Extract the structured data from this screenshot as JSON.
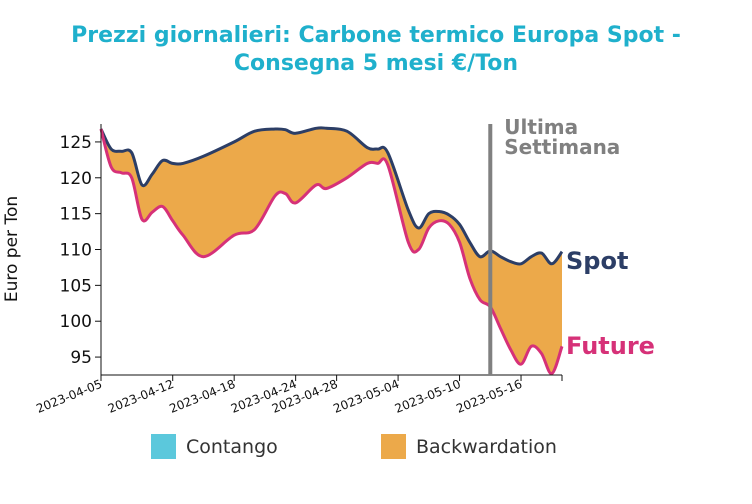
{
  "chart_data": {
    "type": "area",
    "title_line1": "Prezzi giornalieri: Carbone termico Europa Spot -",
    "title_line2": "Consegna 5 mesi €/Ton",
    "ylabel": "Euro per Ton",
    "ylim": [
      92.5,
      127.5
    ],
    "yticks": [
      95,
      100,
      105,
      110,
      115,
      120,
      125
    ],
    "x_start": "2023-04-05",
    "x_end": "2023-05-20",
    "xticks": [
      "2023-04-05",
      "2023-04-12",
      "2023-04-18",
      "2023-04-24",
      "2023-04-28",
      "2023-05-04",
      "2023-05-10",
      "2023-05-16"
    ],
    "marker": {
      "date": "2023-05-13",
      "label_line1": "Ultima",
      "label_line2": "Settimana",
      "color": "#808080"
    },
    "series": [
      {
        "name": "Spot",
        "color": "#2c3e66",
        "points": [
          [
            "2023-04-05",
            126.8
          ],
          [
            "2023-04-06",
            124.0
          ],
          [
            "2023-04-07",
            123.7
          ],
          [
            "2023-04-08",
            123.5
          ],
          [
            "2023-04-09",
            119.0
          ],
          [
            "2023-04-10",
            120.5
          ],
          [
            "2023-04-11",
            122.4
          ],
          [
            "2023-04-12",
            122.0
          ],
          [
            "2023-04-13",
            122.0
          ],
          [
            "2023-04-15",
            123.0
          ],
          [
            "2023-04-18",
            125.0
          ],
          [
            "2023-04-20",
            126.5
          ],
          [
            "2023-04-22",
            126.8
          ],
          [
            "2023-04-23",
            126.7
          ],
          [
            "2023-04-24",
            126.2
          ],
          [
            "2023-04-26",
            126.9
          ],
          [
            "2023-04-27",
            126.9
          ],
          [
            "2023-04-29",
            126.5
          ],
          [
            "2023-05-01",
            124.2
          ],
          [
            "2023-05-02",
            124.0
          ],
          [
            "2023-05-03",
            123.5
          ],
          [
            "2023-05-05",
            115.5
          ],
          [
            "2023-05-06",
            113.0
          ],
          [
            "2023-05-07",
            115.0
          ],
          [
            "2023-05-08",
            115.3
          ],
          [
            "2023-05-09",
            114.8
          ],
          [
            "2023-05-10",
            113.5
          ],
          [
            "2023-05-11",
            111.0
          ],
          [
            "2023-05-12",
            109.0
          ],
          [
            "2023-05-13",
            109.8
          ],
          [
            "2023-05-14",
            109.0
          ],
          [
            "2023-05-15",
            108.3
          ],
          [
            "2023-05-16",
            108.0
          ],
          [
            "2023-05-17",
            109.0
          ],
          [
            "2023-05-18",
            109.5
          ],
          [
            "2023-05-19",
            108.0
          ],
          [
            "2023-05-20",
            109.7
          ]
        ]
      },
      {
        "name": "Future",
        "color": "#d63178",
        "points": [
          [
            "2023-04-05",
            126.8
          ],
          [
            "2023-04-06",
            121.5
          ],
          [
            "2023-04-07",
            120.7
          ],
          [
            "2023-04-08",
            120.0
          ],
          [
            "2023-04-09",
            114.2
          ],
          [
            "2023-04-10",
            115.2
          ],
          [
            "2023-04-11",
            116.0
          ],
          [
            "2023-04-12",
            114.0
          ],
          [
            "2023-04-13",
            112.0
          ],
          [
            "2023-04-15",
            109.0
          ],
          [
            "2023-04-18",
            112.0
          ],
          [
            "2023-04-20",
            112.8
          ],
          [
            "2023-04-22",
            117.5
          ],
          [
            "2023-04-23",
            117.8
          ],
          [
            "2023-04-24",
            116.5
          ],
          [
            "2023-04-26",
            119.0
          ],
          [
            "2023-04-27",
            118.5
          ],
          [
            "2023-04-29",
            120.0
          ],
          [
            "2023-05-01",
            122.0
          ],
          [
            "2023-05-02",
            122.0
          ],
          [
            "2023-05-03",
            121.8
          ],
          [
            "2023-05-05",
            111.0
          ],
          [
            "2023-05-06",
            110.0
          ],
          [
            "2023-05-07",
            113.0
          ],
          [
            "2023-05-08",
            114.0
          ],
          [
            "2023-05-09",
            113.5
          ],
          [
            "2023-05-10",
            111.0
          ],
          [
            "2023-05-11",
            106.0
          ],
          [
            "2023-05-12",
            103.0
          ],
          [
            "2023-05-13",
            102.0
          ],
          [
            "2023-05-14",
            99.0
          ],
          [
            "2023-05-15",
            96.0
          ],
          [
            "2023-05-16",
            94.0
          ],
          [
            "2023-05-17",
            96.5
          ],
          [
            "2023-05-18",
            95.5
          ],
          [
            "2023-05-19",
            92.7
          ],
          [
            "2023-05-20",
            96.5
          ]
        ]
      }
    ],
    "fill": {
      "contango_color": "#5bc8dc",
      "backwardation_color": "#eca94a"
    },
    "legend": {
      "placement": "bottom",
      "items": [
        {
          "label": "Contango",
          "color": "#5bc8dc"
        },
        {
          "label": "Backwardation",
          "color": "#eca94a"
        }
      ]
    }
  }
}
